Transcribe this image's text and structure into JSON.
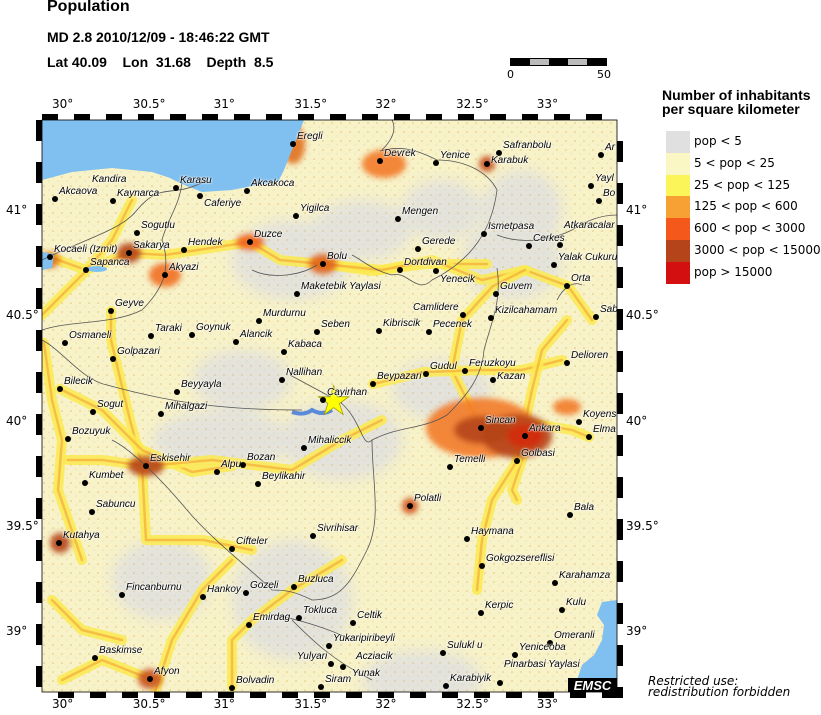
{
  "header": {
    "title": "Population",
    "event": "MD 2.8  2010/12/09 - 18:46:22 GMT",
    "location": "Lat 40.09    Lon  31.68    Depth  8.5"
  },
  "scale_bar": {
    "start": "0",
    "end": "50"
  },
  "axes": {
    "lon_ticks": [
      "30°",
      "30.5°",
      "31°",
      "31.5°",
      "32°",
      "32.5°",
      "33°"
    ],
    "lat_ticks": [
      "41°",
      "40.5°",
      "40°",
      "39.5°",
      "39°"
    ]
  },
  "epicenter": {
    "lat": 40.09,
    "lon": 31.68,
    "marker": "star-icon",
    "color": "#ffff00"
  },
  "legend": {
    "title_line1": "Number of inhabitants",
    "title_line2": "per square kilometer",
    "items": [
      {
        "label": "pop < 5",
        "color": "#e0e0e0"
      },
      {
        "label": "5 < pop < 25",
        "color": "#fbf7c4"
      },
      {
        "label": "25 < pop < 125",
        "color": "#fbf55a"
      },
      {
        "label": "125 < pop < 600",
        "color": "#f7a033"
      },
      {
        "label": "600 < pop < 3000",
        "color": "#f4581a"
      },
      {
        "label": "3000 < pop < 15000",
        "color": "#b5441a"
      },
      {
        "label": "pop > 15000",
        "color": "#d40f0f"
      }
    ]
  },
  "colors": {
    "water": "#80c0f0",
    "border": "#555555"
  },
  "cities": [
    {
      "name": "Eregli"
    },
    {
      "name": "Akcaova"
    },
    {
      "name": "Kandira"
    },
    {
      "name": "Kaynarca"
    },
    {
      "name": "Karasu"
    },
    {
      "name": "Caferiye"
    },
    {
      "name": "Akcakoca"
    },
    {
      "name": "Yigilca"
    },
    {
      "name": "Sogutlu"
    },
    {
      "name": "Duzce"
    },
    {
      "name": "Hendek"
    },
    {
      "name": "Kocaeli (Izmit)"
    },
    {
      "name": "Sakarya"
    },
    {
      "name": "Sapanca"
    },
    {
      "name": "Akyazi"
    },
    {
      "name": "Bolu"
    },
    {
      "name": "Maketebik Yaylasi"
    },
    {
      "name": "Geyve"
    },
    {
      "name": "Devrek"
    },
    {
      "name": "Yenice"
    },
    {
      "name": "Safranbolu"
    },
    {
      "name": "Karabuk"
    },
    {
      "name": "Ar"
    },
    {
      "name": "Yayl"
    },
    {
      "name": "Bo"
    },
    {
      "name": "Mengen"
    },
    {
      "name": "Ismetpasa"
    },
    {
      "name": "Cerkes"
    },
    {
      "name": "Atkaracalar"
    },
    {
      "name": "Gerede"
    },
    {
      "name": "Dortdivan"
    },
    {
      "name": "Yenecik"
    },
    {
      "name": "Yalak Cukuru"
    },
    {
      "name": "Orta"
    },
    {
      "name": "Guvem"
    },
    {
      "name": "Camlidere"
    },
    {
      "name": "Kizilcahamam"
    },
    {
      "name": "Sab"
    },
    {
      "name": "Murdurnu"
    },
    {
      "name": "Seben"
    },
    {
      "name": "Osmaneli"
    },
    {
      "name": "Taraki"
    },
    {
      "name": "Goynuk"
    },
    {
      "name": "Alancik"
    },
    {
      "name": "Kabaca"
    },
    {
      "name": "Golpazari"
    },
    {
      "name": "Nallihan"
    },
    {
      "name": "Bilecik"
    },
    {
      "name": "Beyyayla"
    },
    {
      "name": "Cayirhan"
    },
    {
      "name": "Sogut"
    },
    {
      "name": "Mihalgazi"
    },
    {
      "name": "Bozuyuk"
    },
    {
      "name": "Mihaliccik"
    },
    {
      "name": "Eskisehir"
    },
    {
      "name": "Alpu"
    },
    {
      "name": "Bozan"
    },
    {
      "name": "Beylikahir"
    },
    {
      "name": "Kumbet"
    },
    {
      "name": "Kibriscik"
    },
    {
      "name": "Pecenek"
    },
    {
      "name": "Gudul"
    },
    {
      "name": "Feruzkoyu"
    },
    {
      "name": "Kazan"
    },
    {
      "name": "Beypazari"
    },
    {
      "name": "Delioren"
    },
    {
      "name": "Sincan"
    },
    {
      "name": "Ankara"
    },
    {
      "name": "Koyens"
    },
    {
      "name": "Elma"
    },
    {
      "name": "Golbasi"
    },
    {
      "name": "Temelli"
    },
    {
      "name": "Sabuncu"
    },
    {
      "name": "Kutahya"
    },
    {
      "name": "Cifteler"
    },
    {
      "name": "Sivrihisar"
    },
    {
      "name": "Fincanburnu"
    },
    {
      "name": "Hankoy"
    },
    {
      "name": "Gozeli"
    },
    {
      "name": "Buzluca"
    },
    {
      "name": "Emirdag"
    },
    {
      "name": "Tokluca"
    },
    {
      "name": "Baskimse"
    },
    {
      "name": "Afyon"
    },
    {
      "name": "Bolvadin"
    },
    {
      "name": "Polatli"
    },
    {
      "name": "Bala"
    },
    {
      "name": "Haymana"
    },
    {
      "name": "Gokgozsereflisi"
    },
    {
      "name": "Karahamza"
    },
    {
      "name": "Kerpic"
    },
    {
      "name": "Kulu"
    },
    {
      "name": "Celtik"
    },
    {
      "name": "Omeranli"
    },
    {
      "name": "Yukaripiribeyli"
    },
    {
      "name": "Yulyari"
    },
    {
      "name": "Yunak"
    },
    {
      "name": "Acziacik"
    },
    {
      "name": "Siram"
    },
    {
      "name": "Sulukl u"
    },
    {
      "name": "Yeniceoba"
    },
    {
      "name": "Karabiyik"
    },
    {
      "name": "Pinarbasi Yaylasi"
    }
  ],
  "logo": "EMSC",
  "footer": {
    "line1": "Restricted use:",
    "line2": "redistribution forbidden"
  }
}
